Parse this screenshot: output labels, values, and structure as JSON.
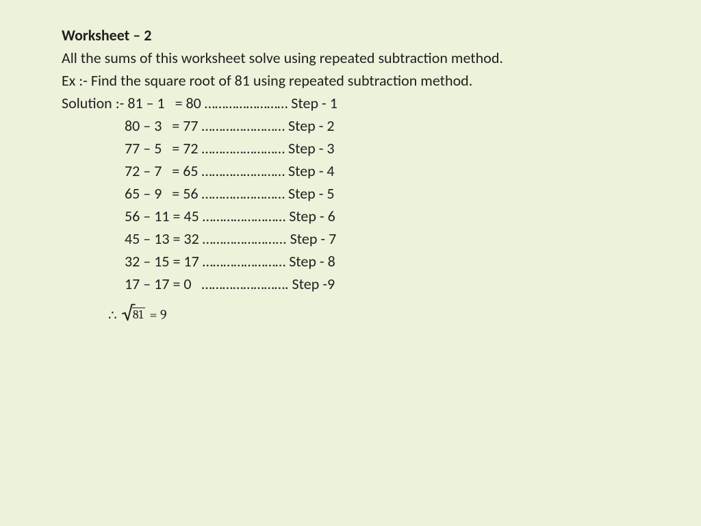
{
  "background_color": "#edf2db",
  "text_color": "#1f1f1f",
  "base_fontsize": 22,
  "title_fontsize": 22,
  "conclusion_fontsize": 20,
  "radicand_fontsize": 18,
  "sqrt_border_width": 1.5,
  "title": "Worksheet – 2",
  "intro": "All the sums of this worksheet solve using repeated subtraction method.",
  "example": "Ex :- Find the square root of 81 using repeated subtraction method.",
  "solution_label": "Solution :- ",
  "steps": [
    {
      "lhs": "81 – 1  ",
      "eq": " = 80 ",
      "dots": "……………………",
      "label": " Step - 1"
    },
    {
      "lhs": "80 – 3  ",
      "eq": " = 77 ",
      "dots": "……………………",
      "label": " Step - 2"
    },
    {
      "lhs": "77 – 5  ",
      "eq": " = 72 ",
      "dots": "……………………",
      "label": " Step - 3"
    },
    {
      "lhs": "72 – 7  ",
      "eq": " = 65 ",
      "dots": "……………………",
      "label": " Step - 4"
    },
    {
      "lhs": "65 – 9  ",
      "eq": " = 56 ",
      "dots": "……………………",
      "label": " Step - 5"
    },
    {
      "lhs": "56 – 11",
      "eq": " = 45 ",
      "dots": "……………………",
      "label": " Step - 6"
    },
    {
      "lhs": "45 – 13",
      "eq": " = 32 ",
      "dots": "…………………...",
      "label": " Step - 7"
    },
    {
      "lhs": "32 – 15",
      "eq": " = 17 ",
      "dots": "……………………",
      "label": " Step - 8"
    },
    {
      "lhs": "17 – 17",
      "eq": " = 0   ",
      "dots": "…………………….",
      "label": " Step -9"
    }
  ],
  "conclusion": {
    "therefore": "∴",
    "radicand": "81",
    "equals": " = 9"
  }
}
